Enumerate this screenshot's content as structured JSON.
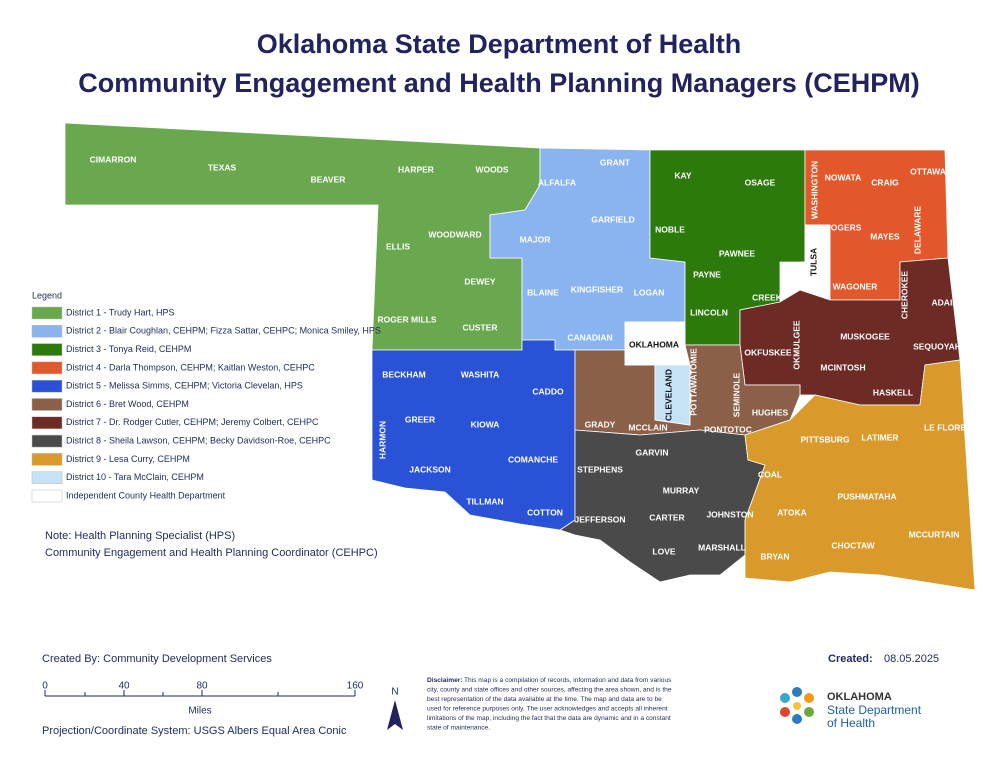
{
  "header": {
    "title_line1": "Oklahoma State Department of Health",
    "title_line2": "Community Engagement and Health Planning Managers (CEHPM)"
  },
  "legend": {
    "title": "Legend",
    "items": [
      {
        "label": "District 1 - Trudy Hart, HPS",
        "color": "#6aa84f"
      },
      {
        "label": "District 2 - Blair Coughlan, CEHPM; Fizza Sattar, CEHPC; Monica Smiley, HPS",
        "color": "#8ab4f0"
      },
      {
        "label": "District 3 - Tonya Reid, CEHPM",
        "color": "#2b7a0b"
      },
      {
        "label": "District 4 - Darla Thompson, CEHPM; Kaitlan Weston, CEHPC",
        "color": "#e2582a"
      },
      {
        "label": "District 5 - Melissa Simms, CEHPM; Victoria Clevelan, HPS",
        "color": "#2a52d6"
      },
      {
        "label": "District 6 - Bret Wood, CEHPM",
        "color": "#8c5f48"
      },
      {
        "label": "District 7 - Dr. Rodger Cutler, CEHPM;  Jeremy Colbert, CEHPC",
        "color": "#6e2b25"
      },
      {
        "label": "District 8 - Sheila Lawson, CEHPM; Becky Davidson-Roe, CEHPC",
        "color": "#4a4a4a"
      },
      {
        "label": "District 9 - Lesa Curry, CEHPM",
        "color": "#d99a2b"
      },
      {
        "label": "District 10 - Tara McClain, CEHPM",
        "color": "#c6e3f6"
      },
      {
        "label": "Independent County Health Department",
        "color": "#ffffff"
      }
    ]
  },
  "counties": [
    "CIMARRON",
    "TEXAS",
    "BEAVER",
    "HARPER",
    "WOODS",
    "ALFALFA",
    "GRANT",
    "KAY",
    "OSAGE",
    "WASHINGTON",
    "NOWATA",
    "CRAIG",
    "OTTAWA",
    "ELLIS",
    "WOODWARD",
    "MAJOR",
    "GARFIELD",
    "NOBLE",
    "PAWNEE",
    "ROGERS",
    "MAYES",
    "DELAWARE",
    "TULSA",
    "DEWEY",
    "BLAINE",
    "KINGFISHER",
    "LOGAN",
    "PAYNE",
    "LINCOLN",
    "CREEK",
    "WAGONER",
    "CHEROKEE",
    "ADAIR",
    "ROGER MILLS",
    "CUSTER",
    "CANADIAN",
    "OKLAHOMA",
    "OKMULGEE",
    "MUSKOGEE",
    "SEQUOYAH",
    "BECKHAM",
    "WASHITA",
    "CADDO",
    "OKFUSKEE",
    "MCINTOSH",
    "CLEVELAND",
    "POTTAWATOMIE",
    "SEMINOLE",
    "HUGHES",
    "HASKELL",
    "GREER",
    "KIOWA",
    "HARMON",
    "GRADY",
    "MCCLAIN",
    "PITTSBURG",
    "LATIMER",
    "LE FLORE",
    "GARVIN",
    "PONTOTOC",
    "JACKSON",
    "COMANCHE",
    "STEPHENS",
    "COAL",
    "MURRAY",
    "PUSHMATAHA",
    "TILLMAN",
    "COTTON",
    "JEFFERSON",
    "CARTER",
    "JOHNSTON",
    "ATOKA",
    "MARSHALL",
    "LOVE",
    "CHOCTAW",
    "MCCURTAIN",
    "BRYAN"
  ],
  "notes": [
    "Note:  Health Planning Specialist (HPS)",
    "Community Engagement and Health Planning Coordinator (CEHPC)"
  ],
  "footer": {
    "created_by": "Created By: Community Development Services",
    "created_label": "Created:",
    "created_date": "08.05.2025",
    "scale": [
      0,
      40,
      80,
      160
    ],
    "scale_unit": "Miles",
    "projection": "Projection/Coordinate System: USGS Albers Equal Area Conic",
    "north": "N",
    "disclaimer_title": "Disclaimer:",
    "disclaimer_lines": [
      "This map is a compilation of records, information and data from various",
      "city, county and state offices and other sources, affecting the area shown, and is the",
      "best representation of the data available at the time.  The map and data are to be",
      "used for reference purposes only.  The user acknowledges and accepts all inherent",
      "limitations of the map, including the fact that the data are dynamic and in a constant",
      "state of maintenance."
    ],
    "logo": [
      "OKLAHOMA",
      "State Department",
      "of Health"
    ]
  }
}
